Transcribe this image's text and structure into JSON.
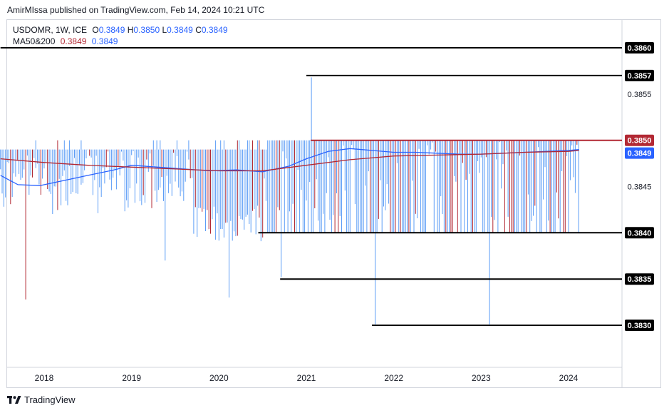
{
  "header": {
    "published_text": "AmirMIssa published on TradingView.com, Feb 14, 2024 10:21 UTC"
  },
  "legend": {
    "symbol_info": "USDOMR, 1W, ICE",
    "o_label": "O",
    "o_value": "0.3849",
    "h_label": "H",
    "h_value": "0.3850",
    "l_label": "L",
    "l_value": "0.3849",
    "c_label": "C",
    "c_value": "0.3849",
    "ma_label": "MA50&200",
    "ma50_value": "0.3849",
    "ma200_value": "0.3849"
  },
  "footer": {
    "brand": "TradingView"
  },
  "colors": {
    "up": "#5b9cf6",
    "down": "#b22833",
    "ma50": "#2962ff",
    "ma200": "#b22833",
    "level_line": "#000000",
    "resistance_line": "#b22833",
    "last_price_bg": "#2962ff"
  },
  "chart_data": {
    "type": "line",
    "title": "USDOMR, 1W, ICE",
    "xlabel": "",
    "ylabel": "",
    "x_ticks": [
      "2018",
      "2019",
      "2020",
      "2021",
      "2022",
      "2023",
      "2024"
    ],
    "y_ticks": [
      "0.3860",
      "0.3857",
      "0.3855",
      "0.3850",
      "0.3849",
      "0.3845",
      "0.3840",
      "0.3835",
      "0.3830"
    ],
    "ylim": [
      0.3826,
      0.3863
    ],
    "horizontal_levels": [
      {
        "value": 0.386,
        "label": "0.3860",
        "color": "black",
        "from_year": 2017.5
      },
      {
        "value": 0.3857,
        "label": "0.3857",
        "color": "black",
        "from_year": 2021.0
      },
      {
        "value": 0.385,
        "label": "0.3850",
        "color": "red",
        "from_year": 2021.05
      },
      {
        "value": 0.384,
        "label": "0.3840",
        "color": "black",
        "from_year": 2020.45
      },
      {
        "value": 0.3835,
        "label": "0.3835",
        "color": "black",
        "from_year": 2020.7
      },
      {
        "value": 0.383,
        "label": "0.3830",
        "color": "black",
        "from_year": 2021.75
      }
    ],
    "last_price": {
      "value": 0.3849,
      "label": "0.3849"
    },
    "series": [
      {
        "name": "MA50",
        "x": [
          2017.5,
          2017.7,
          2017.95,
          2018.2,
          2018.5,
          2018.8,
          2019.0,
          2019.3,
          2019.6,
          2019.9,
          2020.2,
          2020.5,
          2020.8,
          2021.0,
          2021.25,
          2021.5,
          2021.75,
          2022.0,
          2022.25,
          2022.5,
          2022.75,
          2023.0,
          2023.25,
          2023.5,
          2023.75,
          2024.0,
          2024.12
        ],
        "values": [
          0.38462,
          0.38452,
          0.38451,
          0.38456,
          0.38462,
          0.38468,
          0.38473,
          0.38471,
          0.38469,
          0.38467,
          0.38468,
          0.38466,
          0.38472,
          0.3848,
          0.38488,
          0.38491,
          0.38489,
          0.38487,
          0.38487,
          0.38486,
          0.38485,
          0.38485,
          0.38486,
          0.38487,
          0.38488,
          0.38489,
          0.3849
        ]
      },
      {
        "name": "MA200",
        "x": [
          2017.5,
          2018.0,
          2018.5,
          2019.0,
          2019.5,
          2020.0,
          2020.5,
          2021.0,
          2021.5,
          2022.0,
          2022.5,
          2023.0,
          2023.5,
          2024.0,
          2024.12
        ],
        "values": [
          0.3848,
          0.38476,
          0.38473,
          0.38471,
          0.38469,
          0.38467,
          0.38467,
          0.38473,
          0.38479,
          0.38483,
          0.38484,
          0.38485,
          0.38487,
          0.38488,
          0.38489
        ]
      }
    ]
  }
}
